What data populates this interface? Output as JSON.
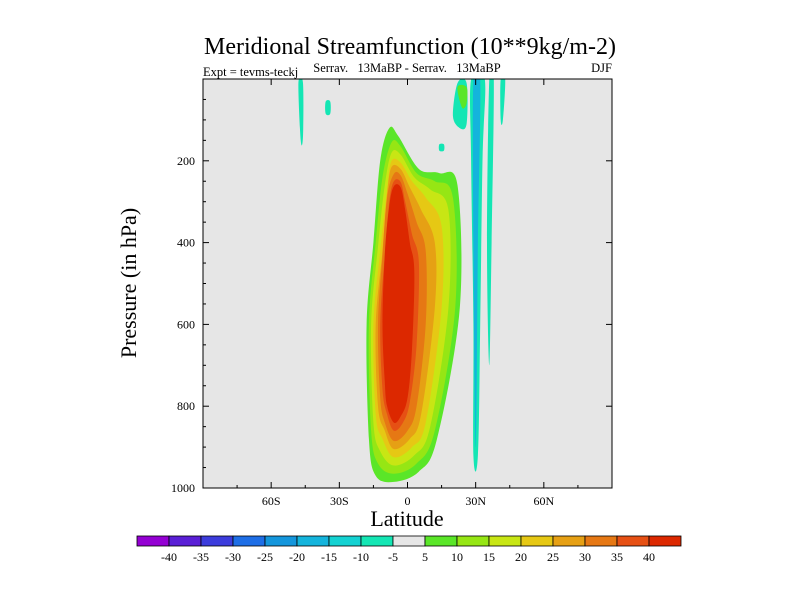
{
  "chart_data": {
    "type": "heatmap",
    "title": "Meridional Streamfunction (10**9kg/m-2)",
    "left_label": "Expt = tevms-teckj",
    "center_label": "Serrav.   13MaBP - Serrav.   13MaBP",
    "right_label": "DJF",
    "xlabel": "Latitude",
    "ylabel": "Pressure (in hPa)",
    "xlim": [
      -90,
      90
    ],
    "ylim": [
      1000,
      0
    ],
    "xticks": [
      {
        "value": -60,
        "label": "60S"
      },
      {
        "value": -30,
        "label": "30S"
      },
      {
        "value": 0,
        "label": "0"
      },
      {
        "value": 30,
        "label": "30N"
      },
      {
        "value": 60,
        "label": "60N"
      }
    ],
    "yticks": [
      {
        "value": 200,
        "label": "200"
      },
      {
        "value": 400,
        "label": "400"
      },
      {
        "value": 600,
        "label": "600"
      },
      {
        "value": 800,
        "label": "800"
      },
      {
        "value": 1000,
        "label": "1000"
      }
    ],
    "background_color": "#e6e6e6",
    "colorbar": {
      "labels": [
        "-40",
        "-35",
        "-30",
        "-25",
        "-20",
        "-15",
        "-10",
        "-5",
        "5",
        "10",
        "15",
        "20",
        "25",
        "30",
        "35",
        "40"
      ],
      "colors": [
        "#9400d3",
        "#5a1fd6",
        "#3c3cdc",
        "#1e6ee6",
        "#1496dc",
        "#14b4dc",
        "#14d2d2",
        "#14e6b4",
        "#e6e6e6",
        "#5ae628",
        "#96e614",
        "#c8e614",
        "#e6c814",
        "#e6a014",
        "#e67814",
        "#e65014",
        "#dc2800"
      ]
    },
    "contours": [
      {
        "level": 5,
        "color": "#5ae628",
        "points": [
          [
            -17,
            880
          ],
          [
            -18,
            600
          ],
          [
            -15,
            400
          ],
          [
            -12,
            200
          ],
          [
            -8,
            120
          ],
          [
            -4,
            140
          ],
          [
            5,
            220
          ],
          [
            14,
            230
          ],
          [
            22,
            260
          ],
          [
            23,
            560
          ],
          [
            13,
            880
          ],
          [
            5,
            960
          ],
          [
            -6,
            985
          ],
          [
            -14,
            970
          ]
        ]
      },
      {
        "level": 10,
        "color": "#96e614",
        "points": [
          [
            -16,
            860
          ],
          [
            -17,
            600
          ],
          [
            -14,
            400
          ],
          [
            -11,
            240
          ],
          [
            -7,
            155
          ],
          [
            -3,
            165
          ],
          [
            4,
            230
          ],
          [
            12,
            250
          ],
          [
            20,
            290
          ],
          [
            21,
            560
          ],
          [
            12,
            860
          ],
          [
            4,
            940
          ],
          [
            -6,
            965
          ],
          [
            -13,
            940
          ]
        ]
      },
      {
        "level": 15,
        "color": "#c8e614",
        "points": [
          [
            -15,
            840
          ],
          [
            -16,
            600
          ],
          [
            -13,
            410
          ],
          [
            -10,
            260
          ],
          [
            -7,
            180
          ],
          [
            -3,
            185
          ],
          [
            3,
            240
          ],
          [
            10,
            270
          ],
          [
            18,
            320
          ],
          [
            18,
            560
          ],
          [
            10,
            850
          ],
          [
            3,
            920
          ],
          [
            -6,
            945
          ],
          [
            -12,
            910
          ]
        ]
      },
      {
        "level": 20,
        "color": "#e6c814",
        "points": [
          [
            -14,
            820
          ],
          [
            -15,
            600
          ],
          [
            -12,
            420
          ],
          [
            -9,
            270
          ],
          [
            -7,
            200
          ],
          [
            -3,
            205
          ],
          [
            2,
            250
          ],
          [
            8,
            290
          ],
          [
            15,
            360
          ],
          [
            15,
            560
          ],
          [
            8,
            840
          ],
          [
            2,
            900
          ],
          [
            -6,
            925
          ],
          [
            -11,
            880
          ]
        ]
      },
      {
        "level": 25,
        "color": "#e6a014",
        "points": [
          [
            -13,
            800
          ],
          [
            -14,
            600
          ],
          [
            -11,
            420
          ],
          [
            -9,
            280
          ],
          [
            -7,
            215
          ],
          [
            -3,
            220
          ],
          [
            1,
            265
          ],
          [
            6,
            320
          ],
          [
            12,
            400
          ],
          [
            12,
            560
          ],
          [
            6,
            820
          ],
          [
            1,
            880
          ],
          [
            -6,
            905
          ],
          [
            -10,
            860
          ]
        ]
      },
      {
        "level": 30,
        "color": "#e67814",
        "points": [
          [
            -12,
            780
          ],
          [
            -13,
            600
          ],
          [
            -11,
            430
          ],
          [
            -9,
            290
          ],
          [
            -6,
            232
          ],
          [
            -3,
            236
          ],
          [
            0,
            280
          ],
          [
            4,
            350
          ],
          [
            8,
            420
          ],
          [
            8,
            600
          ],
          [
            4,
            800
          ],
          [
            0,
            860
          ],
          [
            -6,
            885
          ],
          [
            -10,
            840
          ]
        ]
      },
      {
        "level": 35,
        "color": "#e65014",
        "points": [
          [
            -11,
            760
          ],
          [
            -12,
            600
          ],
          [
            -10,
            430
          ],
          [
            -8,
            300
          ],
          [
            -6,
            250
          ],
          [
            -3,
            252
          ],
          [
            -1,
            300
          ],
          [
            2,
            380
          ],
          [
            5,
            450
          ],
          [
            4,
            650
          ],
          [
            1,
            790
          ],
          [
            -2,
            840
          ],
          [
            -6,
            860
          ],
          [
            -9,
            820
          ]
        ]
      },
      {
        "level": 40,
        "color": "#dc2800",
        "points": [
          [
            -10,
            740
          ],
          [
            -11,
            600
          ],
          [
            -10,
            430
          ],
          [
            -8,
            310
          ],
          [
            -6,
            262
          ],
          [
            -3,
            265
          ],
          [
            -1,
            320
          ],
          [
            1,
            400
          ],
          [
            3,
            470
          ],
          [
            2,
            660
          ],
          [
            0,
            780
          ],
          [
            -3,
            825
          ],
          [
            -6,
            840
          ],
          [
            -9,
            800
          ]
        ]
      },
      {
        "level": -5,
        "color": "#14e6b4",
        "points": [
          [
            -48,
            10
          ],
          [
            -46,
            10
          ],
          [
            -46,
            140
          ],
          [
            -47,
            150
          ]
        ]
      },
      {
        "level": -5,
        "color": "#14e6b4",
        "points": [
          [
            -36,
            55
          ],
          [
            -34,
            55
          ],
          [
            -34,
            85
          ],
          [
            -36,
            85
          ]
        ]
      },
      {
        "level": -5,
        "color": "#14e6b4",
        "points": [
          [
            14,
            160
          ],
          [
            16,
            160
          ],
          [
            16,
            175
          ],
          [
            14,
            175
          ]
        ]
      },
      {
        "level": -5,
        "color": "#14e6b4",
        "points": [
          [
            22,
            10
          ],
          [
            26,
            10
          ],
          [
            26,
            110
          ],
          [
            23,
            120
          ],
          [
            20,
            90
          ]
        ]
      },
      {
        "level": 5,
        "color": "#5ae628",
        "points": [
          [
            22,
            20
          ],
          [
            26,
            20
          ],
          [
            26,
            60
          ],
          [
            24,
            70
          ]
        ]
      },
      {
        "level": -5,
        "color": "#14e6b4",
        "points": [
          [
            28,
            0
          ],
          [
            34,
            0
          ],
          [
            33,
            200
          ],
          [
            32,
            600
          ],
          [
            31,
            920
          ],
          [
            29,
            920
          ],
          [
            29,
            600
          ],
          [
            28,
            200
          ]
        ]
      },
      {
        "level": -10,
        "color": "#14b4dc",
        "points": [
          [
            29,
            0
          ],
          [
            32,
            0
          ],
          [
            31,
            400
          ],
          [
            30,
            900
          ],
          [
            29,
            400
          ]
        ]
      },
      {
        "level": -5,
        "color": "#14e6b4",
        "points": [
          [
            36,
            0
          ],
          [
            38,
            0
          ],
          [
            37,
            400
          ],
          [
            36,
            700
          ],
          [
            35,
            400
          ]
        ]
      },
      {
        "level": -5,
        "color": "#14e6b4",
        "points": [
          [
            41,
            0
          ],
          [
            43,
            0
          ],
          [
            42,
            100
          ],
          [
            41,
            100
          ]
        ]
      }
    ]
  }
}
